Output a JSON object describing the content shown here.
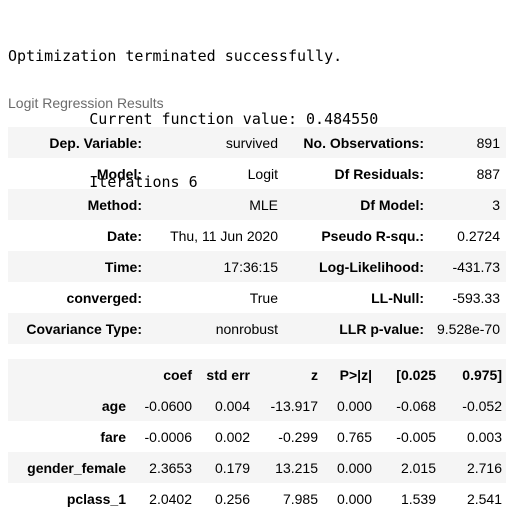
{
  "console": {
    "line1": "Optimization terminated successfully.",
    "line2": "         Current function value: 0.484550",
    "line3": "         Iterations 6"
  },
  "results_title": "Logit Regression Results",
  "summary": [
    {
      "l1": "Dep. Variable:",
      "v1": "survived",
      "l2": "No. Observations:",
      "v2": "891"
    },
    {
      "l1": "Model:",
      "v1": "Logit",
      "l2": "Df Residuals:",
      "v2": "887"
    },
    {
      "l1": "Method:",
      "v1": "MLE",
      "l2": "Df Model:",
      "v2": "3"
    },
    {
      "l1": "Date:",
      "v1": "Thu, 11 Jun 2020",
      "l2": "Pseudo R-squ.:",
      "v2": "0.2724"
    },
    {
      "l1": "Time:",
      "v1": "17:36:15",
      "l2": "Log-Likelihood:",
      "v2": "-431.73"
    },
    {
      "l1": "converged:",
      "v1": "True",
      "l2": "LL-Null:",
      "v2": "-593.33"
    },
    {
      "l1": "Covariance Type:",
      "v1": "nonrobust",
      "l2": "LLR p-value:",
      "v2": "9.528e-70"
    }
  ],
  "coef_table": {
    "headers": [
      "",
      "coef",
      "std err",
      "z",
      "P>|z|",
      "[0.025",
      "0.975]"
    ],
    "rows": [
      [
        "age",
        "-0.0600",
        "0.004",
        "-13.917",
        "0.000",
        "-0.068",
        "-0.052"
      ],
      [
        "fare",
        "-0.0006",
        "0.002",
        "-0.299",
        "0.765",
        "-0.005",
        "0.003"
      ],
      [
        "gender_female",
        "2.3653",
        "0.179",
        "13.215",
        "0.000",
        "2.015",
        "2.716"
      ],
      [
        "pclass_1",
        "2.0402",
        "0.256",
        "7.985",
        "0.000",
        "1.539",
        "2.541"
      ]
    ]
  }
}
